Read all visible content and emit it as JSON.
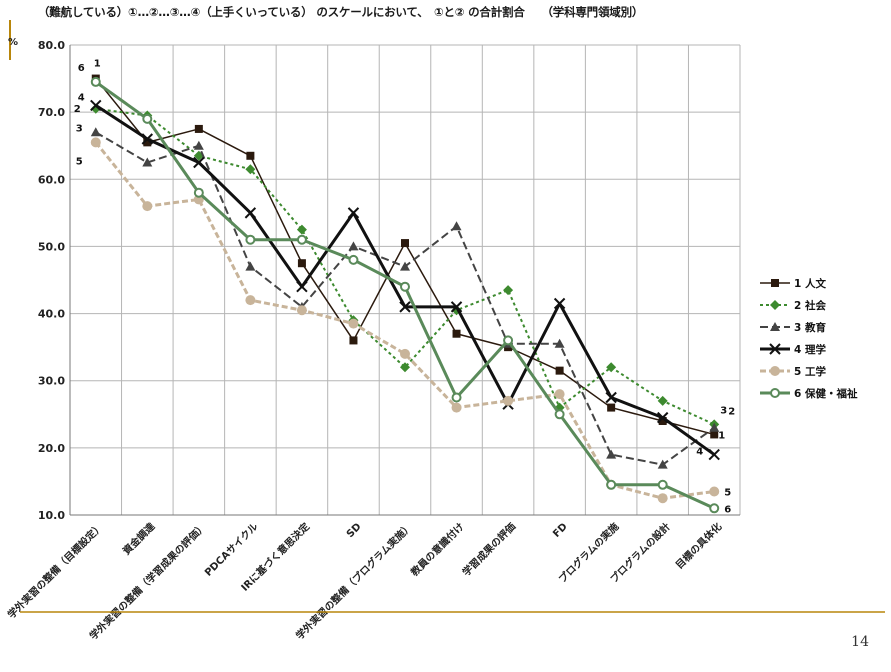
{
  "slide": {
    "subtitle": "（難航している）①…②…③…④（上手くいっている） のスケールにおいて、　①と②  の合計割合　　（学科専門領域別）",
    "page_number": "14",
    "accent_color": "#b8860b"
  },
  "chart_data": {
    "type": "line",
    "ylabel": "%",
    "ylim": [
      10,
      80
    ],
    "yticks": [
      "80.0",
      "70.0",
      "60.0",
      "50.0",
      "40.0",
      "30.0",
      "20.0",
      "10.0"
    ],
    "grid": true,
    "legend_position": "right",
    "categories": [
      "学外実習の整備（目標設定）",
      "資金調達",
      "学外実習の整備（学習成果の評価）",
      "PDCAサイクル",
      "IRに基づく意思決定",
      "SD",
      "学外実習の整備（プログラム実施）",
      "教員の意識付け",
      "学習成果の評価",
      "FD",
      "プログラムの実施",
      "プログラムの設計",
      "目標の具体化"
    ],
    "series": [
      {
        "name": "1 人文",
        "color": "#2b1a0e",
        "dash": "",
        "marker": "square",
        "values": [
          75.0,
          65.5,
          67.5,
          63.5,
          47.5,
          36.0,
          50.5,
          37.0,
          35.0,
          31.5,
          26.0,
          24.0,
          22.0
        ],
        "end_label": "1",
        "start_label": "1"
      },
      {
        "name": "2 社会",
        "color": "#3d8a2f",
        "dash": "3,3",
        "marker": "diamond",
        "values": [
          70.5,
          69.5,
          63.5,
          61.5,
          52.5,
          39.0,
          32.0,
          40.5,
          43.5,
          26.0,
          32.0,
          27.0,
          23.5
        ],
        "end_label": "2",
        "start_label": "2"
      },
      {
        "name": "3 教育",
        "color": "#444444",
        "dash": "8,4",
        "marker": "triangle",
        "values": [
          67.0,
          62.5,
          65.0,
          47.0,
          41.0,
          50.0,
          47.0,
          53.0,
          35.5,
          35.5,
          19.0,
          17.5,
          23.0
        ],
        "end_label": "3",
        "start_label": "3"
      },
      {
        "name": "4 理学",
        "color": "#111111",
        "dash": "",
        "marker": "star",
        "values": [
          71.0,
          66.0,
          62.5,
          55.0,
          44.0,
          55.0,
          41.0,
          41.0,
          26.5,
          41.5,
          27.5,
          24.5,
          19.0
        ],
        "end_label": "4",
        "start_label": "4"
      },
      {
        "name": "5 工学",
        "color": "#c8b49a",
        "dash": "6,3",
        "marker": "circle",
        "values": [
          65.5,
          56.0,
          57.0,
          42.0,
          40.5,
          38.5,
          34.0,
          26.0,
          27.0,
          28.0,
          14.5,
          12.5,
          13.5
        ],
        "end_label": "5",
        "start_label": "5"
      },
      {
        "name": "6 保健・福祉",
        "color": "#5a8a5a",
        "dash": "",
        "marker": "circle-open",
        "values": [
          74.5,
          69.0,
          58.0,
          51.0,
          51.0,
          48.0,
          44.0,
          27.5,
          36.0,
          25.0,
          14.5,
          14.5,
          11.0
        ],
        "end_label": "6",
        "start_label": "6"
      }
    ]
  }
}
